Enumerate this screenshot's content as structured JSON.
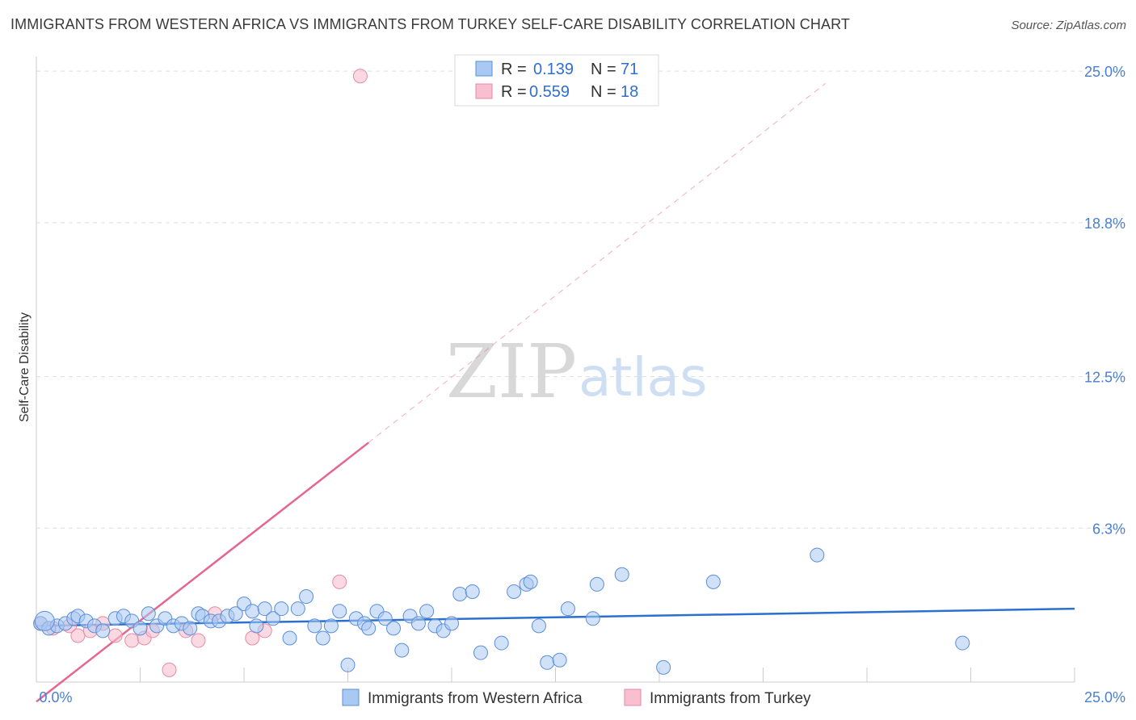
{
  "title": "IMMIGRANTS FROM WESTERN AFRICA VS IMMIGRANTS FROM TURKEY SELF-CARE DISABILITY CORRELATION CHART",
  "source": "Source: ZipAtlas.com",
  "watermark": {
    "part1": "ZIP",
    "part2": "atlas"
  },
  "colors": {
    "blue_fill": "#a9c8f2",
    "blue_stroke": "#5a8fd8",
    "blue_line": "#2b6fcf",
    "pink_fill": "#f7bfd0",
    "pink_stroke": "#e88aa6",
    "pink_line": "#e5668f",
    "grid": "#dddddd",
    "tick_text": "#4a7fd4"
  },
  "legend": {
    "items": [
      {
        "r_label": "R =",
        "r_value": "0.139",
        "n_label": "N =",
        "n_value": "71"
      },
      {
        "r_label": "R =",
        "r_value": "0.559",
        "n_label": "N =",
        "n_value": "18"
      }
    ]
  },
  "chart_data": {
    "type": "scatter",
    "title": "IMMIGRANTS FROM WESTERN AFRICA VS IMMIGRANTS FROM TURKEY SELF-CARE DISABILITY CORRELATION CHART",
    "xlabel": "",
    "ylabel": "Self-Care Disability",
    "xlim": [
      0,
      25
    ],
    "ylim": [
      0,
      25.6
    ],
    "x_tick_labels": [
      "0.0%",
      "25.0%"
    ],
    "y_ticks": [
      6.3,
      12.5,
      18.8,
      25.0
    ],
    "y_tick_labels": [
      "6.3%",
      "12.5%",
      "18.8%",
      "25.0%"
    ],
    "grid": true,
    "legend_position": "top-center",
    "series": [
      {
        "name": "Immigrants from Western Africa",
        "R": 0.139,
        "N": 71,
        "trend": {
          "x": [
            0.0,
            25.0
          ],
          "y": [
            2.3,
            3.0
          ]
        },
        "points": [
          [
            0.1,
            2.4
          ],
          [
            0.3,
            2.2
          ],
          [
            0.5,
            2.3
          ],
          [
            0.7,
            2.4
          ],
          [
            0.9,
            2.6
          ],
          [
            1.0,
            2.7
          ],
          [
            1.2,
            2.5
          ],
          [
            1.4,
            2.3
          ],
          [
            1.6,
            2.1
          ],
          [
            1.9,
            2.6
          ],
          [
            2.1,
            2.7
          ],
          [
            2.3,
            2.5
          ],
          [
            2.5,
            2.2
          ],
          [
            2.7,
            2.8
          ],
          [
            2.9,
            2.3
          ],
          [
            3.1,
            2.6
          ],
          [
            3.3,
            2.3
          ],
          [
            3.5,
            2.4
          ],
          [
            3.7,
            2.2
          ],
          [
            3.9,
            2.8
          ],
          [
            4.0,
            2.7
          ],
          [
            4.2,
            2.5
          ],
          [
            4.4,
            2.5
          ],
          [
            4.6,
            2.7
          ],
          [
            4.8,
            2.8
          ],
          [
            5.0,
            3.2
          ],
          [
            5.2,
            2.9
          ],
          [
            5.3,
            2.3
          ],
          [
            5.5,
            3.0
          ],
          [
            5.7,
            2.6
          ],
          [
            5.9,
            3.0
          ],
          [
            6.1,
            1.8
          ],
          [
            6.3,
            3.0
          ],
          [
            6.5,
            3.5
          ],
          [
            6.7,
            2.3
          ],
          [
            6.9,
            1.8
          ],
          [
            7.1,
            2.3
          ],
          [
            7.3,
            2.9
          ],
          [
            7.5,
            0.7
          ],
          [
            7.7,
            2.6
          ],
          [
            7.9,
            2.4
          ],
          [
            8.0,
            2.2
          ],
          [
            8.2,
            2.9
          ],
          [
            8.4,
            2.6
          ],
          [
            8.6,
            2.2
          ],
          [
            8.8,
            1.3
          ],
          [
            9.0,
            2.7
          ],
          [
            9.2,
            2.4
          ],
          [
            9.4,
            2.9
          ],
          [
            9.6,
            2.3
          ],
          [
            9.8,
            2.1
          ],
          [
            10.0,
            2.4
          ],
          [
            10.2,
            3.6
          ],
          [
            10.5,
            3.7
          ],
          [
            10.7,
            1.2
          ],
          [
            11.2,
            1.6
          ],
          [
            11.5,
            3.7
          ],
          [
            11.8,
            4.0
          ],
          [
            11.9,
            4.1
          ],
          [
            12.1,
            2.3
          ],
          [
            12.3,
            0.8
          ],
          [
            12.6,
            0.9
          ],
          [
            12.8,
            3.0
          ],
          [
            13.4,
            2.6
          ],
          [
            13.5,
            4.0
          ],
          [
            14.1,
            4.4
          ],
          [
            15.1,
            0.6
          ],
          [
            16.3,
            4.1
          ],
          [
            18.8,
            5.2
          ],
          [
            22.3,
            1.6
          ],
          [
            0.2,
            2.5
          ]
        ]
      },
      {
        "name": "Immigrants from Turkey",
        "R": 0.559,
        "N": 18,
        "trend": {
          "x": [
            0.0,
            8.0
          ],
          "y": [
            -0.8,
            9.8
          ]
        },
        "trend_dashed": {
          "x": [
            8.0,
            19.0
          ],
          "y": [
            9.8,
            24.5
          ]
        },
        "points": [
          [
            0.1,
            2.4
          ],
          [
            0.4,
            2.2
          ],
          [
            0.8,
            2.3
          ],
          [
            1.0,
            1.9
          ],
          [
            1.3,
            2.1
          ],
          [
            1.6,
            2.4
          ],
          [
            1.9,
            1.9
          ],
          [
            2.3,
            1.7
          ],
          [
            2.6,
            1.8
          ],
          [
            2.8,
            2.1
          ],
          [
            3.2,
            0.5
          ],
          [
            3.6,
            2.1
          ],
          [
            3.9,
            1.7
          ],
          [
            4.3,
            2.8
          ],
          [
            5.2,
            1.8
          ],
          [
            5.5,
            2.1
          ],
          [
            7.3,
            4.1
          ],
          [
            7.8,
            24.8
          ]
        ]
      }
    ]
  },
  "bottom_legend": [
    "Immigrants from Western Africa",
    "Immigrants from Turkey"
  ]
}
